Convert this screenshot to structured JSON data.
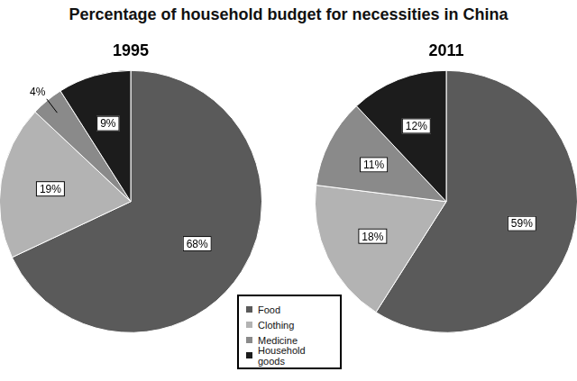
{
  "title": "Percentage of household budget for necessities in China",
  "legend": "bottom",
  "chart_data": [
    {
      "type": "pie",
      "title": "1995",
      "categories": [
        "Food",
        "Clothing",
        "Medicine",
        "Household goods"
      ],
      "values": [
        68,
        19,
        4,
        9
      ],
      "value_labels": [
        "68%",
        "19%",
        "4%",
        "9%"
      ],
      "colors": [
        "#5a5a5a",
        "#b3b3b3",
        "#8a8a8a",
        "#1c1c1c"
      ],
      "data_labels": true
    },
    {
      "type": "pie",
      "title": "2011",
      "categories": [
        "Food",
        "Clothing",
        "Medicine",
        "Household goods"
      ],
      "values": [
        59,
        18,
        11,
        12
      ],
      "value_labels": [
        "59%",
        "18%",
        "11%",
        "12%"
      ],
      "colors": [
        "#5a5a5a",
        "#b3b3b3",
        "#8a8a8a",
        "#1c1c1c"
      ],
      "data_labels": true
    }
  ]
}
